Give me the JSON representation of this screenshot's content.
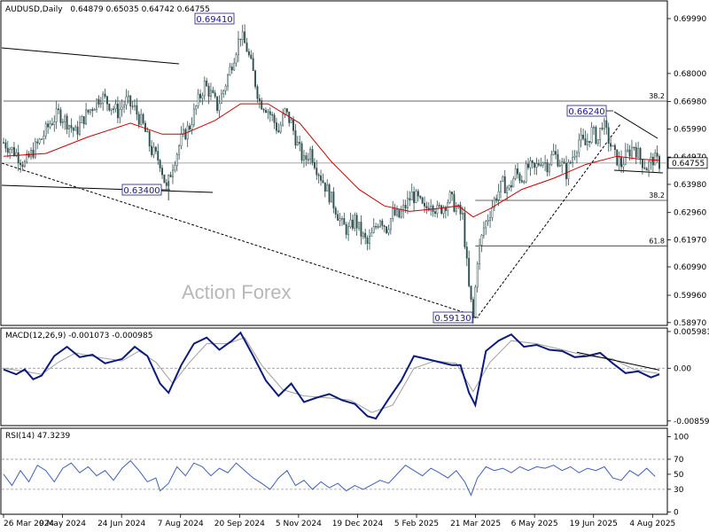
{
  "chart_data": [
    {
      "type": "candlestick",
      "title": "AUDUSD,Daily",
      "ohlc_label": "0.64879 0.65035 0.64742 0.64755",
      "last_price": 0.64755,
      "last_price_label": "0.64755",
      "ylim": [
        0.589,
        0.706
      ],
      "y_ticks": [
        "0.69990",
        "0.68000",
        "0.66980",
        "0.65990",
        "0.64970",
        "0.63980",
        "0.62960",
        "0.61970",
        "0.60990",
        "0.59960",
        "0.58970"
      ],
      "x_labels": [
        "26 Mar 2024",
        "9 May 2024",
        "24 Jun 2024",
        "7 Aug 2024",
        "20 Sep 2024",
        "5 Nov 2024",
        "19 Dec 2024",
        "5 Feb 2025",
        "21 Mar 2025",
        "6 May 2025",
        "19 Jun 2025",
        "4 Aug 2025"
      ],
      "close_path": [
        [
          0,
          0.655
        ],
        [
          6,
          0.651
        ],
        [
          10,
          0.647
        ],
        [
          14,
          0.652
        ],
        [
          18,
          0.6565
        ],
        [
          22,
          0.662
        ],
        [
          26,
          0.6655
        ],
        [
          30,
          0.6625
        ],
        [
          34,
          0.6585
        ],
        [
          38,
          0.664
        ],
        [
          42,
          0.668
        ],
        [
          46,
          0.672
        ],
        [
          50,
          0.669
        ],
        [
          54,
          0.666
        ],
        [
          58,
          0.67
        ],
        [
          62,
          0.667
        ],
        [
          66,
          0.661
        ],
        [
          70,
          0.652
        ],
        [
          74,
          0.648
        ],
        [
          77,
          0.638
        ],
        [
          80,
          0.647
        ],
        [
          84,
          0.656
        ],
        [
          88,
          0.661
        ],
        [
          92,
          0.67
        ],
        [
          95,
          0.676
        ],
        [
          98,
          0.6725
        ],
        [
          101,
          0.668
        ],
        [
          104,
          0.674
        ],
        [
          108,
          0.684
        ],
        [
          112,
          0.6941
        ],
        [
          115,
          0.689
        ],
        [
          118,
          0.68
        ],
        [
          121,
          0.67
        ],
        [
          124,
          0.668
        ],
        [
          127,
          0.664
        ],
        [
          130,
          0.659
        ],
        [
          133,
          0.666
        ],
        [
          136,
          0.662
        ],
        [
          139,
          0.654
        ],
        [
          142,
          0.648
        ],
        [
          145,
          0.652
        ],
        [
          148,
          0.646
        ],
        [
          151,
          0.641
        ],
        [
          154,
          0.636
        ],
        [
          157,
          0.631
        ],
        [
          160,
          0.625
        ],
        [
          163,
          0.623
        ],
        [
          166,
          0.627
        ],
        [
          169,
          0.622
        ],
        [
          172,
          0.618
        ],
        [
          175,
          0.623
        ],
        [
          178,
          0.628
        ],
        [
          181,
          0.624
        ],
        [
          184,
          0.629
        ],
        [
          187,
          0.628
        ],
        [
          190,
          0.632
        ],
        [
          193,
          0.636
        ],
        [
          196,
          0.634
        ],
        [
          199,
          0.63
        ],
        [
          202,
          0.634
        ],
        [
          205,
          0.63
        ],
        [
          208,
          0.632
        ],
        [
          211,
          0.635
        ],
        [
          214,
          0.631
        ],
        [
          217,
          0.628
        ],
        [
          220,
          0.602
        ],
        [
          222,
          0.5913
        ],
        [
          224,
          0.613
        ],
        [
          227,
          0.624
        ],
        [
          230,
          0.63
        ],
        [
          233,
          0.636
        ],
        [
          236,
          0.64
        ],
        [
          239,
          0.638
        ],
        [
          242,
          0.644
        ],
        [
          245,
          0.642
        ],
        [
          248,
          0.646
        ],
        [
          251,
          0.645
        ],
        [
          254,
          0.649
        ],
        [
          257,
          0.647
        ],
        [
          260,
          0.651
        ],
        [
          263,
          0.648
        ],
        [
          266,
          0.644
        ],
        [
          269,
          0.65
        ],
        [
          272,
          0.656
        ],
        [
          275,
          0.654
        ],
        [
          278,
          0.659
        ],
        [
          281,
          0.656
        ],
        [
          283,
          0.6624
        ],
        [
          286,
          0.656
        ],
        [
          289,
          0.65
        ],
        [
          292,
          0.647
        ],
        [
          295,
          0.651
        ],
        [
          298,
          0.654
        ],
        [
          301,
          0.649
        ],
        [
          304,
          0.646
        ],
        [
          307,
          0.649
        ],
        [
          310,
          0.6475
        ]
      ],
      "sma_path": [
        [
          0,
          0.65
        ],
        [
          20,
          0.651
        ],
        [
          40,
          0.657
        ],
        [
          60,
          0.662
        ],
        [
          75,
          0.658
        ],
        [
          85,
          0.658
        ],
        [
          100,
          0.663
        ],
        [
          112,
          0.669
        ],
        [
          125,
          0.669
        ],
        [
          140,
          0.662
        ],
        [
          155,
          0.648
        ],
        [
          168,
          0.638
        ],
        [
          180,
          0.632
        ],
        [
          192,
          0.63
        ],
        [
          205,
          0.631
        ],
        [
          215,
          0.632
        ],
        [
          222,
          0.628
        ],
        [
          230,
          0.631
        ],
        [
          245,
          0.638
        ],
        [
          260,
          0.642
        ],
        [
          275,
          0.647
        ],
        [
          290,
          0.65
        ],
        [
          300,
          0.649
        ],
        [
          310,
          0.6485
        ]
      ],
      "annotations": [
        {
          "label": "0.69410",
          "bar": 112,
          "value": 0.6941
        },
        {
          "label": "0.66240",
          "bar": 283,
          "value": 0.6624
        },
        {
          "label": "0.63400",
          "bar": 78,
          "value": 0.634
        },
        {
          "label": "0.59130",
          "bar": 222,
          "value": 0.5913
        }
      ],
      "fib_levels": [
        {
          "label": "38.2",
          "value": 0.67,
          "from_bar": 0
        },
        {
          "label": "38.2",
          "value": 0.634,
          "from_bar": 223
        },
        {
          "label": "61.8",
          "value": 0.6175,
          "from_bar": 223
        }
      ],
      "watermark": "Action Forex",
      "colors": {
        "candle": "#2f4f4f",
        "sma": "#cc0000",
        "label_border": "#1a1a80"
      }
    },
    {
      "type": "line",
      "title": "MACD(12,26,9) -0.001073 -0.000985",
      "ylim": [
        -0.0092,
        0.0064
      ],
      "y_ticks": [
        "0.005981",
        "0.00",
        "-0.00859"
      ],
      "macd_path": [
        [
          0,
          -0.0002
        ],
        [
          6,
          -0.001
        ],
        [
          10,
          -0.0002
        ],
        [
          14,
          -0.0018
        ],
        [
          18,
          -0.0012
        ],
        [
          24,
          0.002
        ],
        [
          30,
          0.0035
        ],
        [
          36,
          0.0018
        ],
        [
          42,
          0.0022
        ],
        [
          48,
          0.0008
        ],
        [
          56,
          0.0015
        ],
        [
          62,
          0.0035
        ],
        [
          68,
          0.002
        ],
        [
          74,
          -0.0025
        ],
        [
          78,
          -0.004
        ],
        [
          84,
          0.0005
        ],
        [
          90,
          0.004
        ],
        [
          96,
          0.005
        ],
        [
          102,
          0.003
        ],
        [
          108,
          0.0045
        ],
        [
          112,
          0.0058
        ],
        [
          118,
          0.002
        ],
        [
          124,
          -0.002
        ],
        [
          130,
          -0.0045
        ],
        [
          136,
          -0.0025
        ],
        [
          142,
          -0.0055
        ],
        [
          148,
          -0.0048
        ],
        [
          154,
          -0.0042
        ],
        [
          160,
          -0.0052
        ],
        [
          166,
          -0.0058
        ],
        [
          172,
          -0.0078
        ],
        [
          176,
          -0.0082
        ],
        [
          182,
          -0.005
        ],
        [
          188,
          -0.002
        ],
        [
          194,
          0.002
        ],
        [
          200,
          0.0015
        ],
        [
          206,
          0.001
        ],
        [
          212,
          0.0005
        ],
        [
          216,
          0.0005
        ],
        [
          220,
          -0.004
        ],
        [
          223,
          -0.006
        ],
        [
          228,
          0.0028
        ],
        [
          234,
          0.0045
        ],
        [
          240,
          0.0055
        ],
        [
          246,
          0.0035
        ],
        [
          252,
          0.0038
        ],
        [
          258,
          0.003
        ],
        [
          264,
          0.0028
        ],
        [
          270,
          0.0018
        ],
        [
          276,
          0.002
        ],
        [
          282,
          0.0025
        ],
        [
          288,
          0.0008
        ],
        [
          294,
          -0.0008
        ],
        [
          300,
          -0.0005
        ],
        [
          306,
          -0.0015
        ],
        [
          310,
          -0.001
        ]
      ],
      "signal_path": [
        [
          0,
          0.0
        ],
        [
          10,
          -0.0005
        ],
        [
          18,
          -0.001
        ],
        [
          26,
          0.001
        ],
        [
          34,
          0.0025
        ],
        [
          44,
          0.0018
        ],
        [
          56,
          0.0012
        ],
        [
          64,
          0.0028
        ],
        [
          72,
          0.001
        ],
        [
          80,
          -0.0025
        ],
        [
          88,
          0.001
        ],
        [
          96,
          0.004
        ],
        [
          106,
          0.004
        ],
        [
          114,
          0.005
        ],
        [
          122,
          0.0005
        ],
        [
          132,
          -0.0035
        ],
        [
          142,
          -0.0045
        ],
        [
          152,
          -0.0048
        ],
        [
          164,
          -0.0052
        ],
        [
          174,
          -0.0072
        ],
        [
          184,
          -0.006
        ],
        [
          194,
          0.0
        ],
        [
          204,
          0.0012
        ],
        [
          214,
          0.0008
        ],
        [
          222,
          -0.0038
        ],
        [
          230,
          0.001
        ],
        [
          240,
          0.0045
        ],
        [
          252,
          0.004
        ],
        [
          264,
          0.003
        ],
        [
          276,
          0.002
        ],
        [
          288,
          0.0015
        ],
        [
          298,
          -0.0002
        ],
        [
          310,
          -0.0009
        ]
      ],
      "trendline": [
        [
          271,
          0.0026
        ],
        [
          310,
          -0.0003
        ]
      ]
    },
    {
      "type": "line",
      "title": "RSI(14) 47.3239",
      "ylim": [
        -2,
        110
      ],
      "y_ticks": [
        "100",
        "70",
        "50",
        "30",
        "0"
      ],
      "levels": [
        70,
        30
      ],
      "rsi_path": [
        [
          0,
          50
        ],
        [
          4,
          35
        ],
        [
          8,
          55
        ],
        [
          12,
          40
        ],
        [
          16,
          62
        ],
        [
          20,
          55
        ],
        [
          24,
          40
        ],
        [
          28,
          58
        ],
        [
          32,
          65
        ],
        [
          36,
          52
        ],
        [
          40,
          60
        ],
        [
          44,
          48
        ],
        [
          48,
          55
        ],
        [
          52,
          42
        ],
        [
          56,
          58
        ],
        [
          60,
          68
        ],
        [
          64,
          55
        ],
        [
          68,
          40
        ],
        [
          72,
          45
        ],
        [
          74,
          28
        ],
        [
          78,
          38
        ],
        [
          82,
          60
        ],
        [
          86,
          48
        ],
        [
          90,
          65
        ],
        [
          94,
          60
        ],
        [
          98,
          48
        ],
        [
          102,
          58
        ],
        [
          106,
          52
        ],
        [
          110,
          65
        ],
        [
          114,
          55
        ],
        [
          118,
          45
        ],
        [
          122,
          38
        ],
        [
          126,
          30
        ],
        [
          130,
          45
        ],
        [
          134,
          55
        ],
        [
          138,
          35
        ],
        [
          142,
          42
        ],
        [
          146,
          30
        ],
        [
          150,
          40
        ],
        [
          154,
          32
        ],
        [
          158,
          38
        ],
        [
          162,
          28
        ],
        [
          166,
          35
        ],
        [
          170,
          30
        ],
        [
          174,
          36
        ],
        [
          178,
          42
        ],
        [
          182,
          38
        ],
        [
          186,
          50
        ],
        [
          190,
          62
        ],
        [
          194,
          55
        ],
        [
          198,
          48
        ],
        [
          202,
          58
        ],
        [
          206,
          52
        ],
        [
          210,
          45
        ],
        [
          214,
          55
        ],
        [
          218,
          40
        ],
        [
          221,
          22
        ],
        [
          224,
          45
        ],
        [
          228,
          60
        ],
        [
          232,
          55
        ],
        [
          236,
          58
        ],
        [
          240,
          52
        ],
        [
          244,
          60
        ],
        [
          248,
          55
        ],
        [
          252,
          60
        ],
        [
          256,
          58
        ],
        [
          260,
          62
        ],
        [
          264,
          55
        ],
        [
          268,
          60
        ],
        [
          272,
          52
        ],
        [
          276,
          58
        ],
        [
          280,
          55
        ],
        [
          284,
          60
        ],
        [
          288,
          45
        ],
        [
          292,
          42
        ],
        [
          296,
          55
        ],
        [
          300,
          48
        ],
        [
          304,
          58
        ],
        [
          308,
          47
        ]
      ]
    }
  ]
}
